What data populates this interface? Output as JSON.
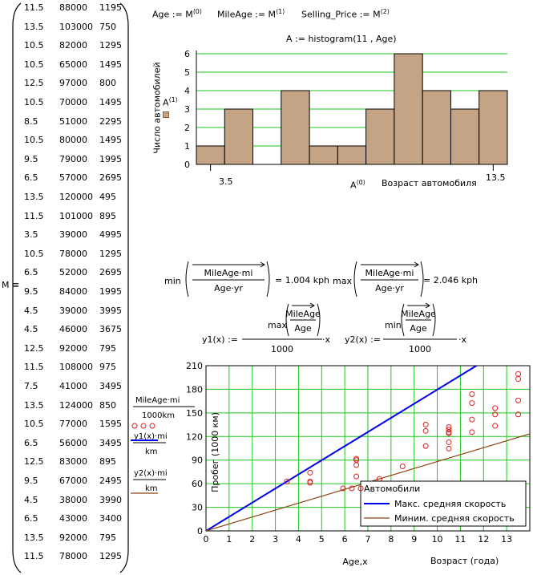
{
  "matrix": {
    "name": "M",
    "operator": "≡",
    "rows": [
      [
        "11.5",
        "88000",
        "1195"
      ],
      [
        "13.5",
        "103000",
        "750"
      ],
      [
        "10.5",
        "82000",
        "1295"
      ],
      [
        "10.5",
        "65000",
        "1495"
      ],
      [
        "12.5",
        "97000",
        "800"
      ],
      [
        "10.5",
        "70000",
        "1495"
      ],
      [
        "8.5",
        "51000",
        "2295"
      ],
      [
        "10.5",
        "80000",
        "1495"
      ],
      [
        "9.5",
        "79000",
        "1995"
      ],
      [
        "6.5",
        "57000",
        "2695"
      ],
      [
        "13.5",
        "120000",
        "495"
      ],
      [
        "11.5",
        "101000",
        "895"
      ],
      [
        "3.5",
        "39000",
        "4995"
      ],
      [
        "10.5",
        "78000",
        "1295"
      ],
      [
        "6.5",
        "52000",
        "2695"
      ],
      [
        "9.5",
        "84000",
        "1995"
      ],
      [
        "4.5",
        "39000",
        "3995"
      ],
      [
        "4.5",
        "46000",
        "3675"
      ],
      [
        "12.5",
        "92000",
        "795"
      ],
      [
        "11.5",
        "108000",
        "975"
      ],
      [
        "7.5",
        "41000",
        "3495"
      ],
      [
        "13.5",
        "124000",
        "850"
      ],
      [
        "10.5",
        "77000",
        "1595"
      ],
      [
        "6.5",
        "56000",
        "3495"
      ],
      [
        "12.5",
        "83000",
        "895"
      ],
      [
        "9.5",
        "67000",
        "2495"
      ],
      [
        "4.5",
        "38000",
        "3990"
      ],
      [
        "6.5",
        "43000",
        "3400"
      ],
      [
        "13.5",
        "92000",
        "795"
      ],
      [
        "11.5",
        "78000",
        "1295"
      ]
    ]
  },
  "defs": {
    "age": "Age := M",
    "age_sup": "⟨0⟩",
    "mileage": "MileAge := M",
    "mileage_sup": "⟨1⟩",
    "price": "Selling_Price := M",
    "price_sup": "⟨2⟩"
  },
  "histogram": {
    "formula": "A := histogram(11 , Age)",
    "ylabel": "Число автомобилей",
    "ytrace": "A",
    "ytrace_sup": "⟨1⟩",
    "xtrace": "A",
    "xtrace_sup": "⟨0⟩",
    "xlabel": "Возраст автомобиля",
    "xmin_label": "3.5",
    "xmax_label": "13.5",
    "yticks": [
      "0",
      "1",
      "2",
      "3",
      "4",
      "5",
      "6"
    ],
    "bar_color": "#c4a484"
  },
  "minmax": {
    "min_fn": "min",
    "max_fn": "max",
    "num": "MileAge·mi",
    "den": "Age·yr",
    "min_result": "= 1.004 kph",
    "max_result": "= 2.046 kph"
  },
  "y_defs": {
    "y1_lhs": "y1(x) :=",
    "y2_lhs": "y2(x) :=",
    "y1_fn": "max",
    "y2_fn": "min",
    "num": "MileAge",
    "den": "Age",
    "divisor": "1000",
    "times": "·x"
  },
  "scatter_legend_traces": {
    "t1_num": "MileAge·mi",
    "t1_den": "1000km",
    "t2_num": "y1(x)·mi",
    "t2_den": "km",
    "t3_num": "y2(x)·mi",
    "t3_den": "km"
  },
  "chart_data": [
    {
      "type": "bar",
      "title": "A := histogram(11 , Age)",
      "xlabel": "Возраст автомобиля",
      "ylabel": "Число автомобилей",
      "x": [
        3.5,
        4.5,
        5.5,
        6.5,
        7.5,
        8.5,
        9.5,
        10.5,
        11.5,
        12.5,
        13.5
      ],
      "values": [
        1,
        3,
        0,
        4,
        1,
        1,
        3,
        6,
        4,
        3,
        4
      ],
      "xlim": [
        3,
        14
      ],
      "ylim": [
        0,
        6
      ],
      "grid": true,
      "color": "#c4a484"
    },
    {
      "type": "scatter",
      "xlabel": "Возраст (года)",
      "ylabel": "Пробег (1000 км)",
      "x_trace_label": "Age,x",
      "xlim": [
        0,
        14
      ],
      "ylim": [
        0,
        210
      ],
      "xticks": [
        0,
        1,
        2,
        3,
        4,
        5,
        6,
        7,
        8,
        9,
        10,
        11,
        12,
        13
      ],
      "yticks": [
        0,
        30,
        60,
        90,
        120,
        150,
        180,
        210
      ],
      "grid": true,
      "legend_position": "bottom-right",
      "series": [
        {
          "name": "Автомобили",
          "marker": "circle",
          "color": "#e02020",
          "points": [
            [
              11.5,
              141.6
            ],
            [
              13.5,
              165.8
            ],
            [
              10.5,
              132.0
            ],
            [
              10.5,
              104.6
            ],
            [
              12.5,
              156.1
            ],
            [
              10.5,
              112.7
            ],
            [
              8.5,
              82.1
            ],
            [
              10.5,
              128.7
            ],
            [
              9.5,
              127.1
            ],
            [
              6.5,
              91.7
            ],
            [
              13.5,
              193.1
            ],
            [
              11.5,
              162.5
            ],
            [
              3.5,
              62.8
            ],
            [
              10.5,
              125.5
            ],
            [
              6.5,
              83.7
            ],
            [
              9.5,
              135.2
            ],
            [
              4.5,
              62.8
            ],
            [
              4.5,
              74.0
            ],
            [
              12.5,
              148.1
            ],
            [
              11.5,
              173.8
            ],
            [
              7.5,
              66.0
            ],
            [
              13.5,
              199.6
            ],
            [
              10.5,
              123.9
            ],
            [
              6.5,
              90.1
            ],
            [
              12.5,
              133.6
            ],
            [
              9.5,
              107.8
            ],
            [
              4.5,
              61.2
            ],
            [
              6.5,
              69.2
            ],
            [
              13.5,
              148.1
            ],
            [
              11.5,
              125.5
            ]
          ]
        },
        {
          "name": "Макс. средняя скорость",
          "type": "line",
          "color": "#0000ee",
          "x": [
            0,
            14
          ],
          "y": [
            0,
            251.4
          ]
        },
        {
          "name": "Миним. средняя скорость",
          "type": "line",
          "color": "#8b4513",
          "x": [
            0,
            14
          ],
          "y": [
            0,
            123.4
          ]
        }
      ]
    }
  ]
}
